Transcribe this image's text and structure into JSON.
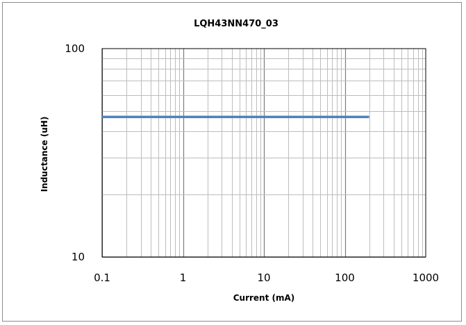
{
  "chart_data": {
    "type": "line",
    "title": "LQH43NN470_03",
    "xlabel": "Current (mA)",
    "ylabel": "Inductance (uH)",
    "x_scale": "log",
    "y_scale": "log",
    "xlim": [
      0.1,
      1000
    ],
    "ylim": [
      10,
      100
    ],
    "grid": true,
    "x_ticks": [
      {
        "value": 0.1,
        "label": "0.1"
      },
      {
        "value": 1,
        "label": "1"
      },
      {
        "value": 10,
        "label": "10"
      },
      {
        "value": 100,
        "label": "100"
      },
      {
        "value": 1000,
        "label": "1000"
      }
    ],
    "y_ticks": [
      {
        "value": 10,
        "label": "10"
      },
      {
        "value": 100,
        "label": "100"
      }
    ],
    "series": [
      {
        "color": "#4f81bd",
        "x": [
          0.1,
          200
        ],
        "y": [
          47,
          47
        ]
      }
    ]
  }
}
